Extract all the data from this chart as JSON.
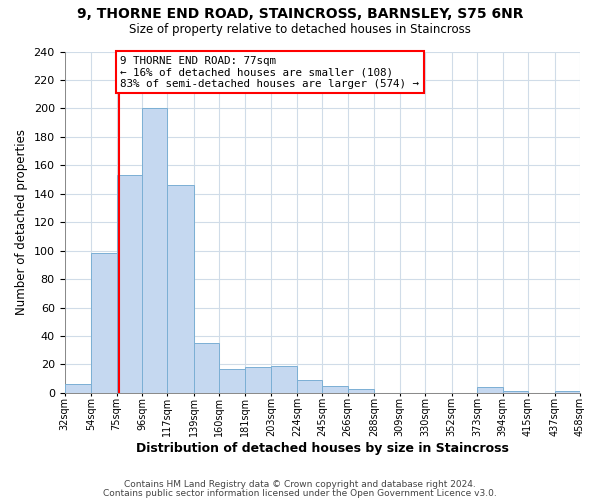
{
  "title": "9, THORNE END ROAD, STAINCROSS, BARNSLEY, S75 6NR",
  "subtitle": "Size of property relative to detached houses in Staincross",
  "xlabel": "Distribution of detached houses by size in Staincross",
  "ylabel": "Number of detached properties",
  "bar_edges": [
    32,
    54,
    75,
    96,
    117,
    139,
    160,
    181,
    203,
    224,
    245,
    266,
    288,
    309,
    330,
    352,
    373,
    394,
    415,
    437,
    458
  ],
  "bar_heights": [
    6,
    98,
    153,
    200,
    146,
    35,
    17,
    18,
    19,
    9,
    5,
    3,
    0,
    0,
    0,
    0,
    4,
    1,
    0,
    1
  ],
  "bar_color": "#c5d8f0",
  "bar_edge_color": "#7bafd4",
  "property_line_x": 77,
  "property_line_color": "red",
  "annotation_title": "9 THORNE END ROAD: 77sqm",
  "annotation_line1": "← 16% of detached houses are smaller (108)",
  "annotation_line2": "83% of semi-detached houses are larger (574) →",
  "annotation_box_color": "white",
  "annotation_box_edge_color": "red",
  "ylim": [
    0,
    240
  ],
  "yticks": [
    0,
    20,
    40,
    60,
    80,
    100,
    120,
    140,
    160,
    180,
    200,
    220,
    240
  ],
  "tick_labels": [
    "32sqm",
    "54sqm",
    "75sqm",
    "96sqm",
    "117sqm",
    "139sqm",
    "160sqm",
    "181sqm",
    "203sqm",
    "224sqm",
    "245sqm",
    "266sqm",
    "288sqm",
    "309sqm",
    "330sqm",
    "352sqm",
    "373sqm",
    "394sqm",
    "415sqm",
    "437sqm",
    "458sqm"
  ],
  "footer1": "Contains HM Land Registry data © Crown copyright and database right 2024.",
  "footer2": "Contains public sector information licensed under the Open Government Licence v3.0.",
  "background_color": "#ffffff",
  "plot_bg_color": "#ffffff",
  "grid_color": "#d0dce8"
}
